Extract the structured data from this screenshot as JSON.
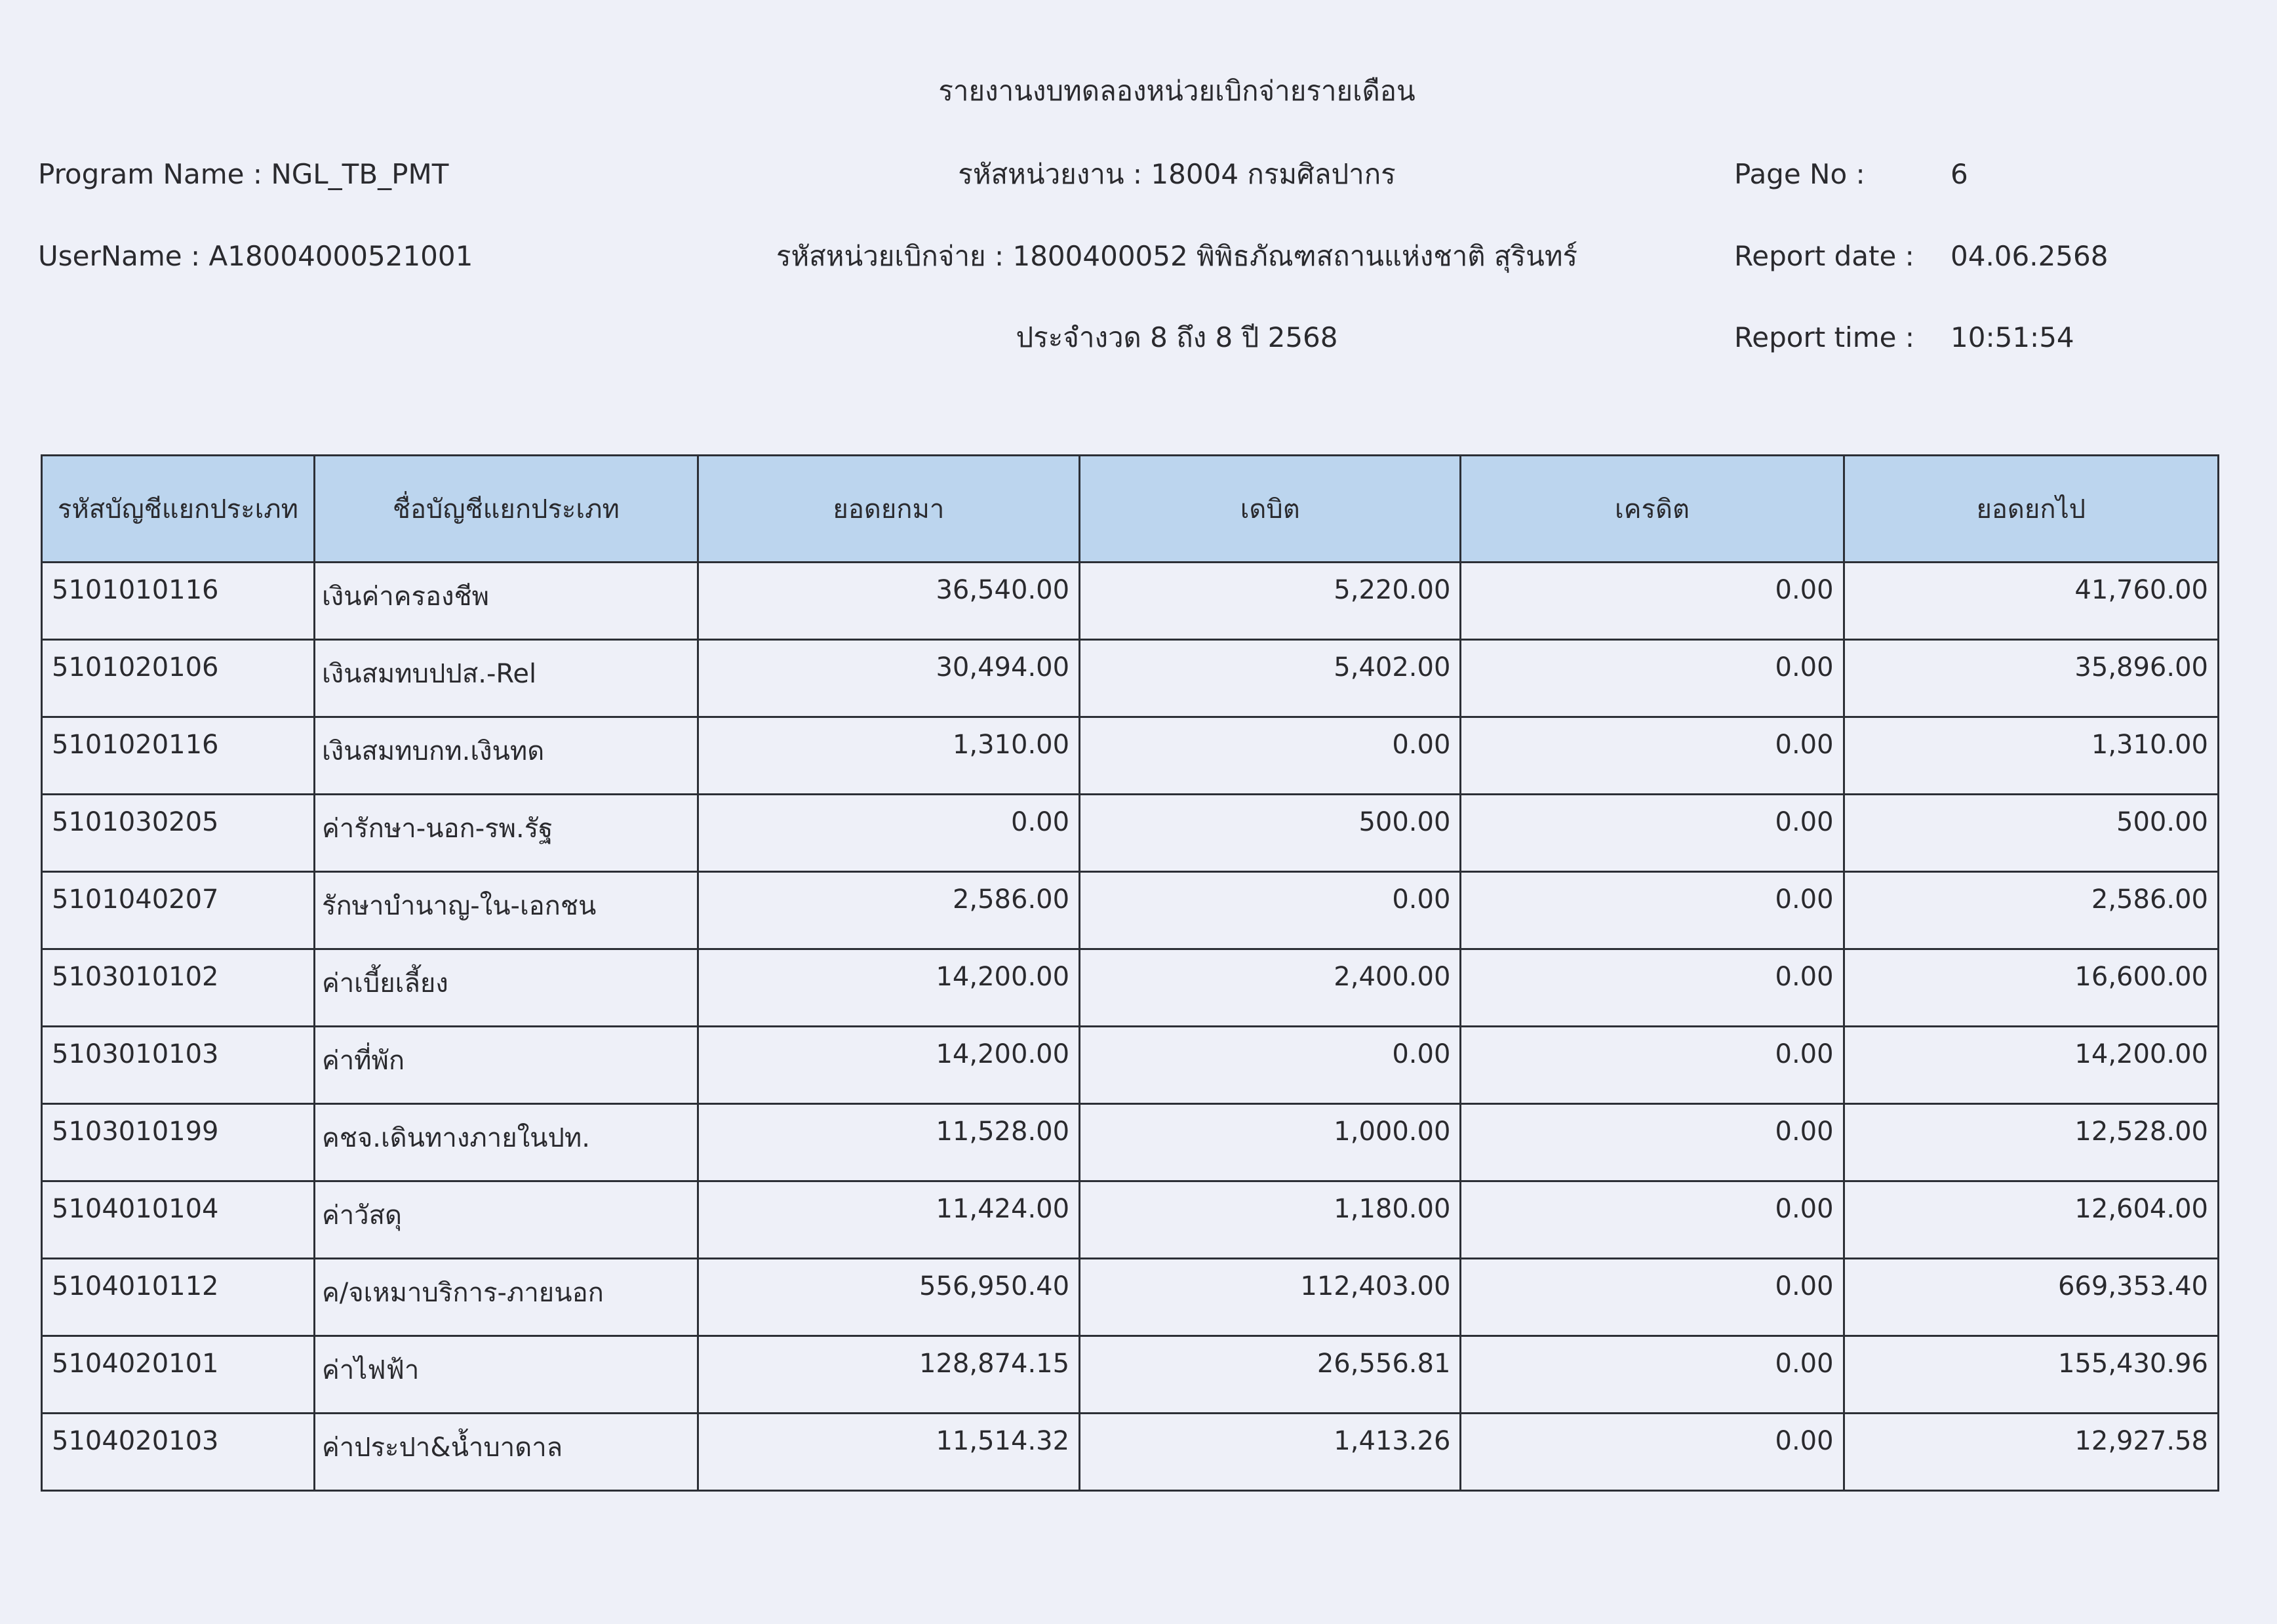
{
  "header": {
    "title": "รายงานงบทดลองหน่วยเบิกจ่ายรายเดือน",
    "agency": "รหัสหน่วยงาน : 18004 กรมศิลปากร",
    "disbursement_unit": "รหัสหน่วยเบิกจ่าย : 1800400052 พิพิธภัณฑสถานแห่งชาติ สุรินทร์",
    "period": "ประจำงวด 8 ถึง 8 ปี 2568",
    "program_name": "Program Name : NGL_TB_PMT",
    "username": "UserName : A18004000521001",
    "page_no_label": "Page No :",
    "page_no": "6",
    "report_date_label": "Report date :",
    "report_date": "04.06.2568",
    "report_time_label": "Report time :",
    "report_time": "10:51:54"
  },
  "table": {
    "columns": [
      "รหัสบัญชีแยกประเภท",
      "ชื่อบัญชีแยกประเภท",
      "ยอดยกมา",
      "เดบิต",
      "เครดิต",
      "ยอดยกไป"
    ],
    "rows": [
      [
        "5101010116",
        "เงินค่าครองชีพ",
        "36,540.00",
        "5,220.00",
        "0.00",
        "41,760.00"
      ],
      [
        "5101020106",
        "เงินสมทบปปส.-Rel",
        "30,494.00",
        "5,402.00",
        "0.00",
        "35,896.00"
      ],
      [
        "5101020116",
        "เงินสมทบกท.เงินทด",
        "1,310.00",
        "0.00",
        "0.00",
        "1,310.00"
      ],
      [
        "5101030205",
        "ค่ารักษา-นอก-รพ.รัฐ",
        "0.00",
        "500.00",
        "0.00",
        "500.00"
      ],
      [
        "5101040207",
        "รักษาบำนาญ-ใน-เอกชน",
        "2,586.00",
        "0.00",
        "0.00",
        "2,586.00"
      ],
      [
        "5103010102",
        "ค่าเบี้ยเลี้ยง",
        "14,200.00",
        "2,400.00",
        "0.00",
        "16,600.00"
      ],
      [
        "5103010103",
        "ค่าที่พัก",
        "14,200.00",
        "0.00",
        "0.00",
        "14,200.00"
      ],
      [
        "5103010199",
        "คชจ.เดินทางภายในปท.",
        "11,528.00",
        "1,000.00",
        "0.00",
        "12,528.00"
      ],
      [
        "5104010104",
        "ค่าวัสดุ",
        "11,424.00",
        "1,180.00",
        "0.00",
        "12,604.00"
      ],
      [
        "5104010112",
        "ค/จเหมาบริการ-ภายนอก",
        "556,950.40",
        "112,403.00",
        "0.00",
        "669,353.40"
      ],
      [
        "5104020101",
        "ค่าไฟฟ้า",
        "128,874.15",
        "26,556.81",
        "0.00",
        "155,430.96"
      ],
      [
        "5104020103",
        "ค่าประปา&น้ำบาดาล",
        "11,514.32",
        "1,413.26",
        "0.00",
        "12,927.58"
      ]
    ]
  },
  "colors": {
    "header_fill": "#bcd5ee",
    "paper": "#eef0f8",
    "border": "#2c2f36"
  }
}
